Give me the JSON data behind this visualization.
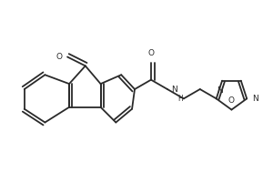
{
  "bg_color": "#ffffff",
  "line_color": "#2a2a2a",
  "lw": 1.3,
  "figsize": [
    3.0,
    2.0
  ],
  "dpi": 100,
  "xlim": [
    0,
    3.0
  ],
  "ylim": [
    0,
    2.0
  ],
  "BL": 0.21,
  "label_fs": 6.5
}
